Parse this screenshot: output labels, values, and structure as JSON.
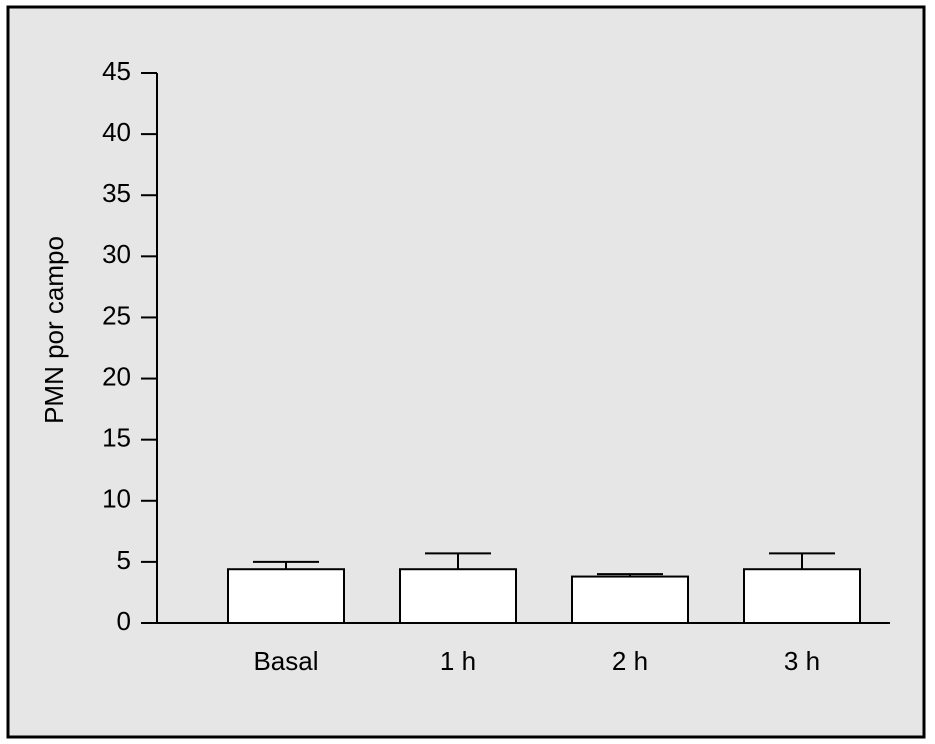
{
  "chart_data": {
    "type": "bar",
    "y_label": "PMN por campo",
    "categories": [
      "Basal",
      "1 h",
      "2 h",
      "3 h"
    ],
    "values": [
      4.4,
      4.4,
      3.8,
      4.4
    ],
    "errors": [
      0.6,
      1.3,
      0.2,
      1.3
    ],
    "color": "#ffffff",
    "ylim": [
      0,
      45
    ],
    "yticks": [
      0,
      5,
      10,
      15,
      20,
      25,
      30,
      35,
      40,
      45
    ]
  }
}
